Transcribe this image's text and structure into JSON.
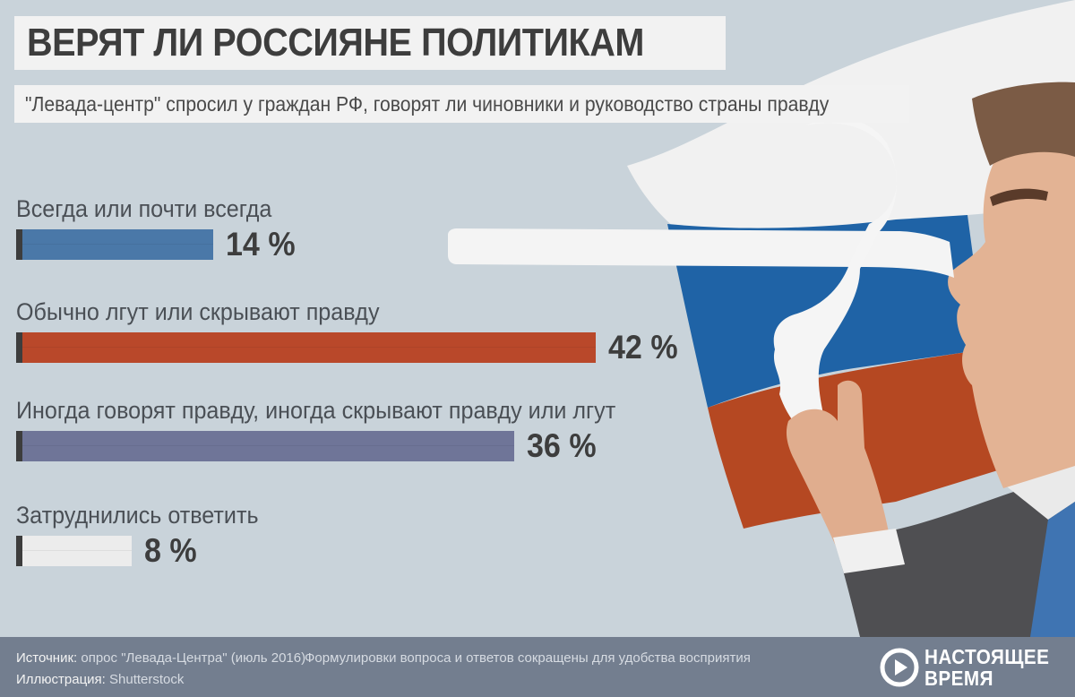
{
  "title": "ВЕРЯТ ЛИ РОССИЯНЕ ПОЛИТИКАМ",
  "subtitle": "\"Левада-центр\" спросил у граждан РФ, говорят ли чиновники и руководство страны правду",
  "chart_data": {
    "type": "bar",
    "orientation": "horizontal",
    "title": "ВЕРЯТ ЛИ РОССИЯНЕ ПОЛИТИКАМ",
    "unit": "%",
    "categories": [
      "Всегда или почти всегда",
      "Обычно лгут или скрывают правду",
      "Иногда говорят правду, иногда скрывают правду или лгут",
      "Затруднились ответить"
    ],
    "values": [
      14,
      42,
      36,
      8
    ],
    "value_labels": [
      "14 %",
      "42 %",
      "36 %",
      "8 %"
    ],
    "colors": [
      "#4a78a8",
      "#b9482a",
      "#6f7598",
      "#ececec"
    ],
    "xlim": [
      0,
      42
    ],
    "grid": false,
    "legend": "none"
  },
  "footer": {
    "source_label": "Источник:",
    "source_text": "опрос \"Левада-Центра\" (июль 2016)",
    "note": "Формулировки вопроса и ответов сокращены для удобства восприятия",
    "illustration_label": "Иллюстрация:",
    "illustration_text": "Shutterstock"
  },
  "logo": {
    "line1": "НАСТОЯЩЕЕ",
    "line2": "ВРЕМЯ"
  }
}
